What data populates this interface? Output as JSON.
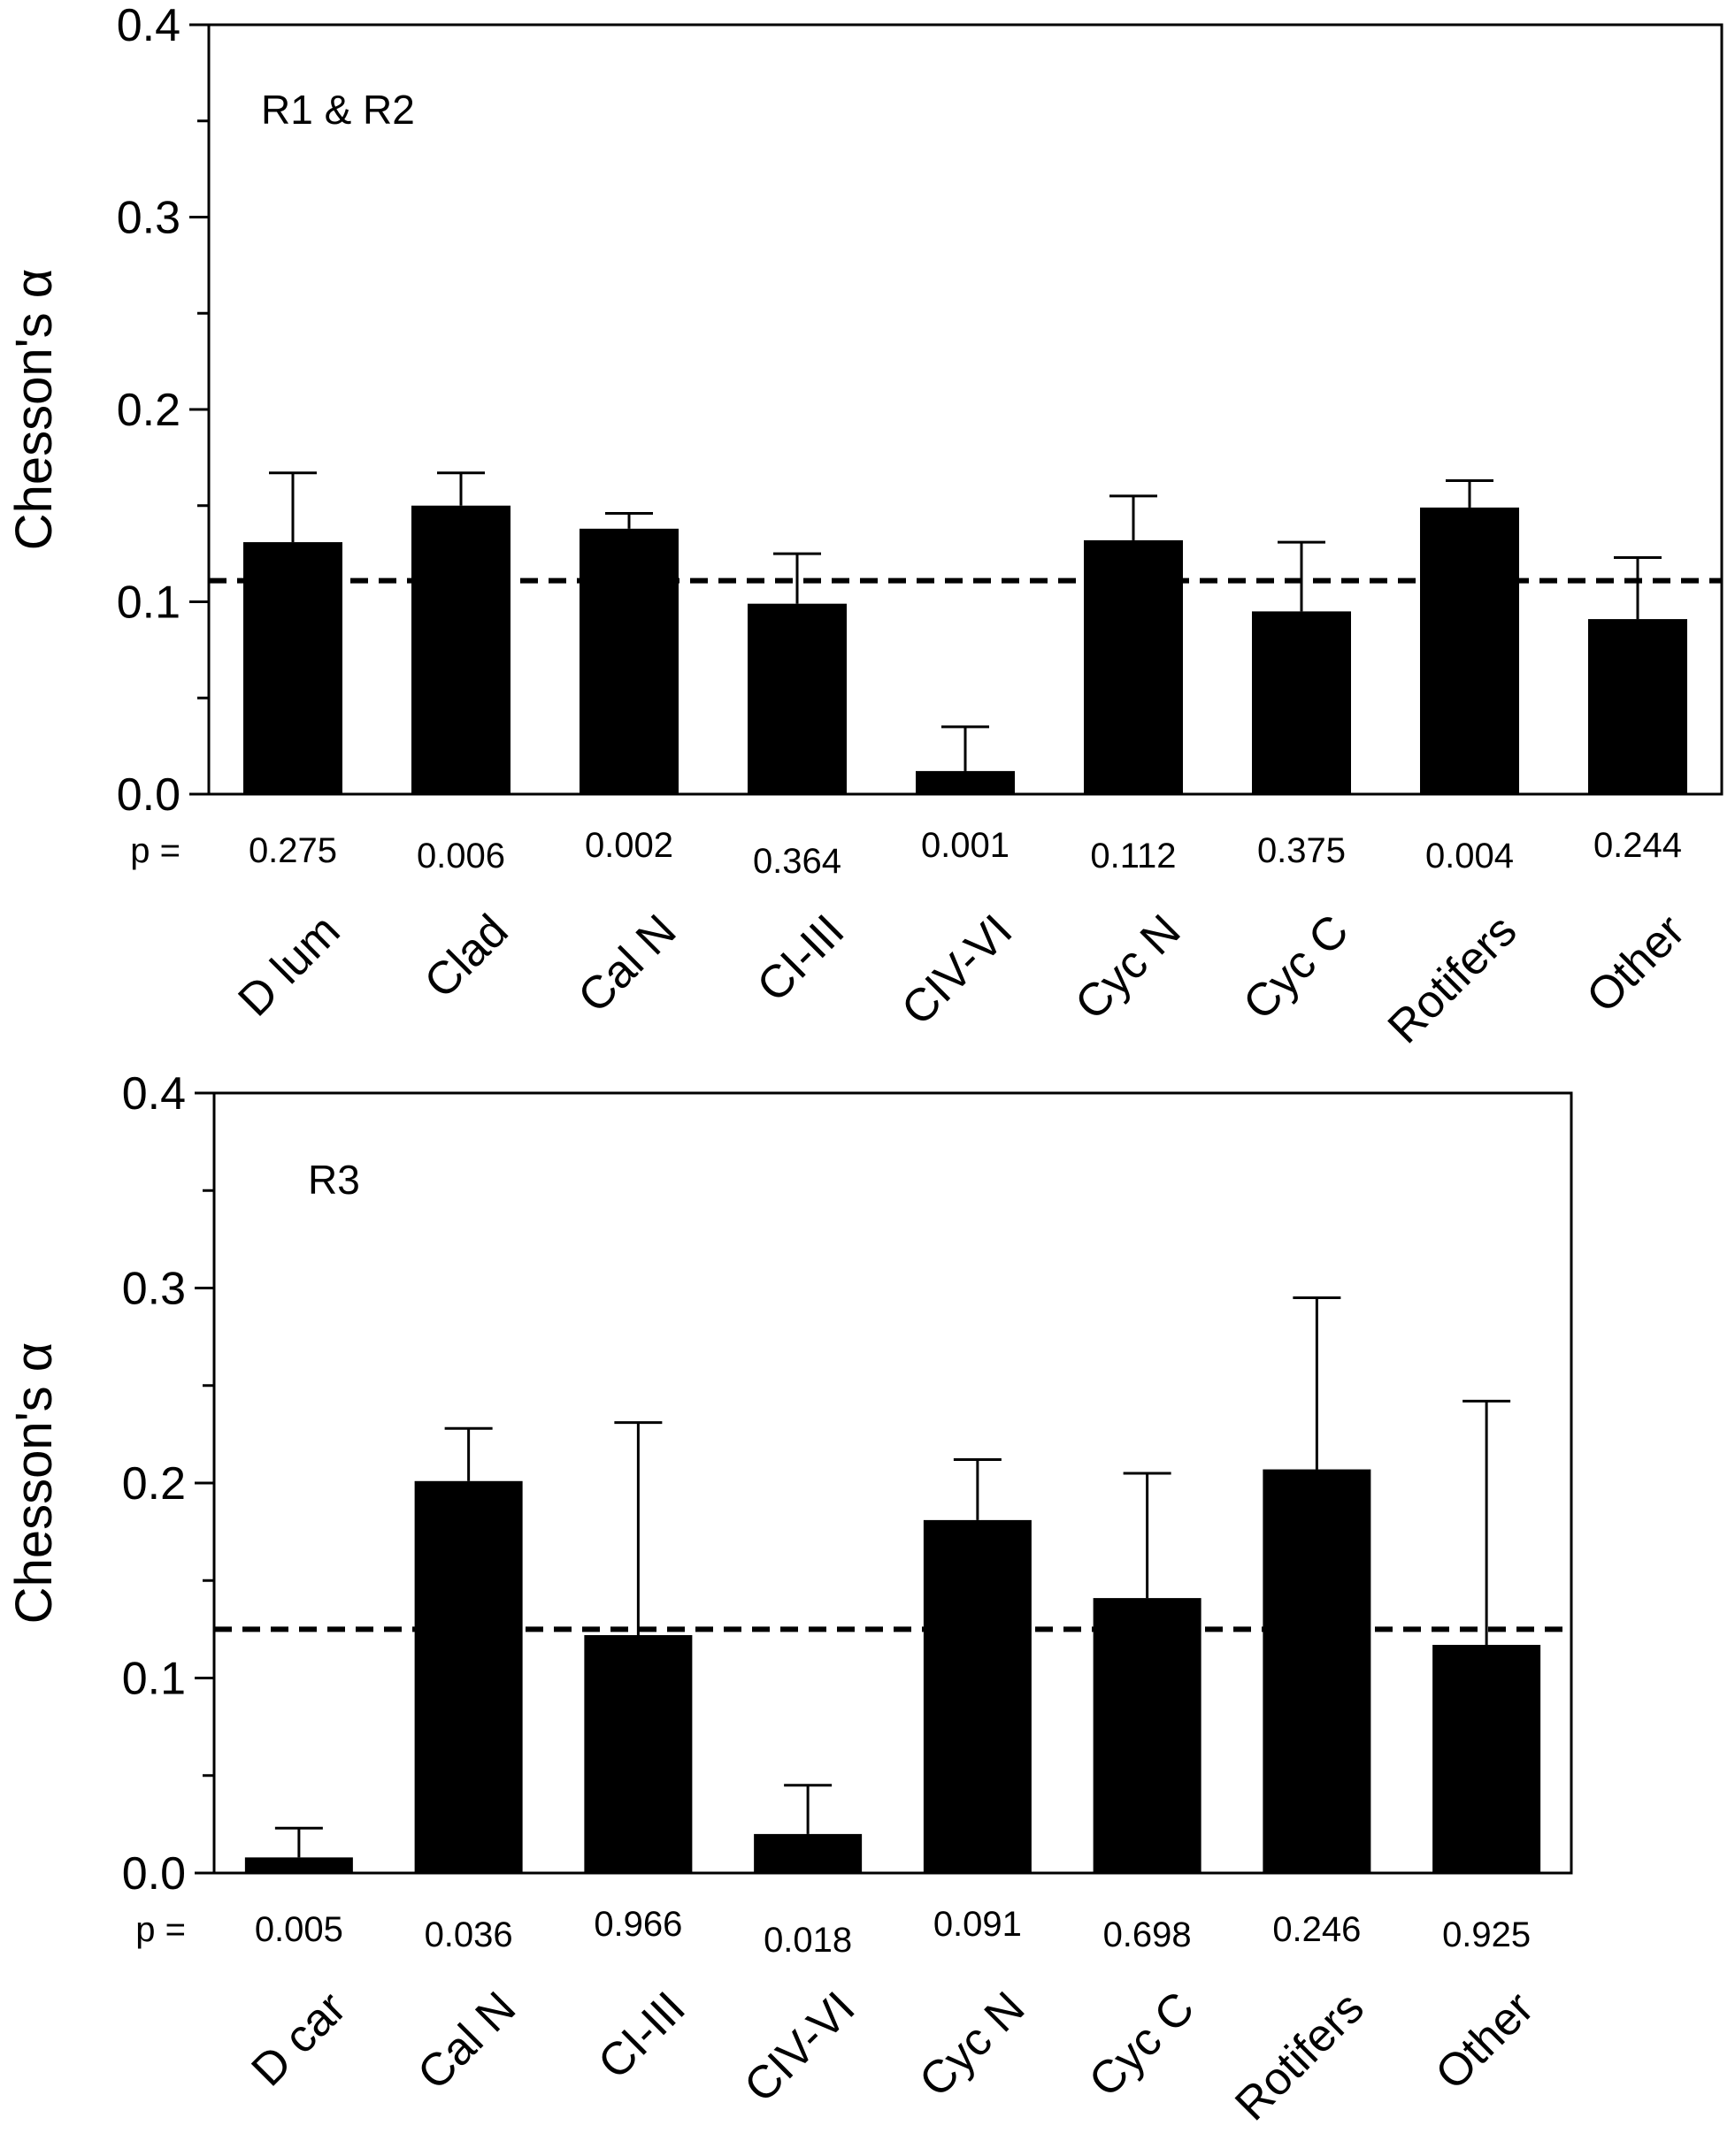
{
  "chart_data": [
    {
      "type": "bar",
      "panel_label": "R1 & R2",
      "ylabel": "Chesson's α",
      "xlabel": "",
      "ylim": [
        0,
        0.4
      ],
      "yticks": [
        "0.0",
        "0.1",
        "0.2",
        "0.3",
        "0.4"
      ],
      "grid": false,
      "p_prefix": "p =",
      "reference_line": 0.111,
      "categories": [
        "D lum",
        "Clad",
        "Cal N",
        "CI-III",
        "CIV-VI",
        "Cyc N",
        "Cyc C",
        "Rotifers",
        "Other"
      ],
      "values": [
        0.131,
        0.15,
        0.138,
        0.099,
        0.012,
        0.132,
        0.095,
        0.149,
        0.091
      ],
      "error_upper": [
        0.167,
        0.167,
        0.146,
        0.125,
        0.035,
        0.155,
        0.131,
        0.163,
        0.123
      ],
      "p_values": [
        "0.275",
        "0.006",
        "0.002",
        "0.364",
        "0.001",
        "0.112",
        "0.375",
        "0.004",
        "0.244"
      ]
    },
    {
      "type": "bar",
      "panel_label": "R3",
      "ylabel": "Chesson's α",
      "xlabel": "",
      "ylim": [
        0,
        0.4
      ],
      "yticks": [
        "0.0",
        "0.1",
        "0.2",
        "0.3",
        "0.4"
      ],
      "grid": false,
      "p_prefix": "p =",
      "reference_line": 0.125,
      "categories": [
        "D car",
        "Cal N",
        "CI-III",
        "CIV-VI",
        "Cyc N",
        "Cyc C",
        "Rotifers",
        "Other"
      ],
      "values": [
        0.008,
        0.201,
        0.122,
        0.02,
        0.181,
        0.141,
        0.207,
        0.117
      ],
      "error_upper": [
        0.023,
        0.228,
        0.231,
        0.045,
        0.212,
        0.205,
        0.295,
        0.242
      ],
      "p_values": [
        "0.005",
        "0.036",
        "0.966",
        "0.018",
        "0.091",
        "0.698",
        "0.246",
        "0.925"
      ]
    }
  ]
}
